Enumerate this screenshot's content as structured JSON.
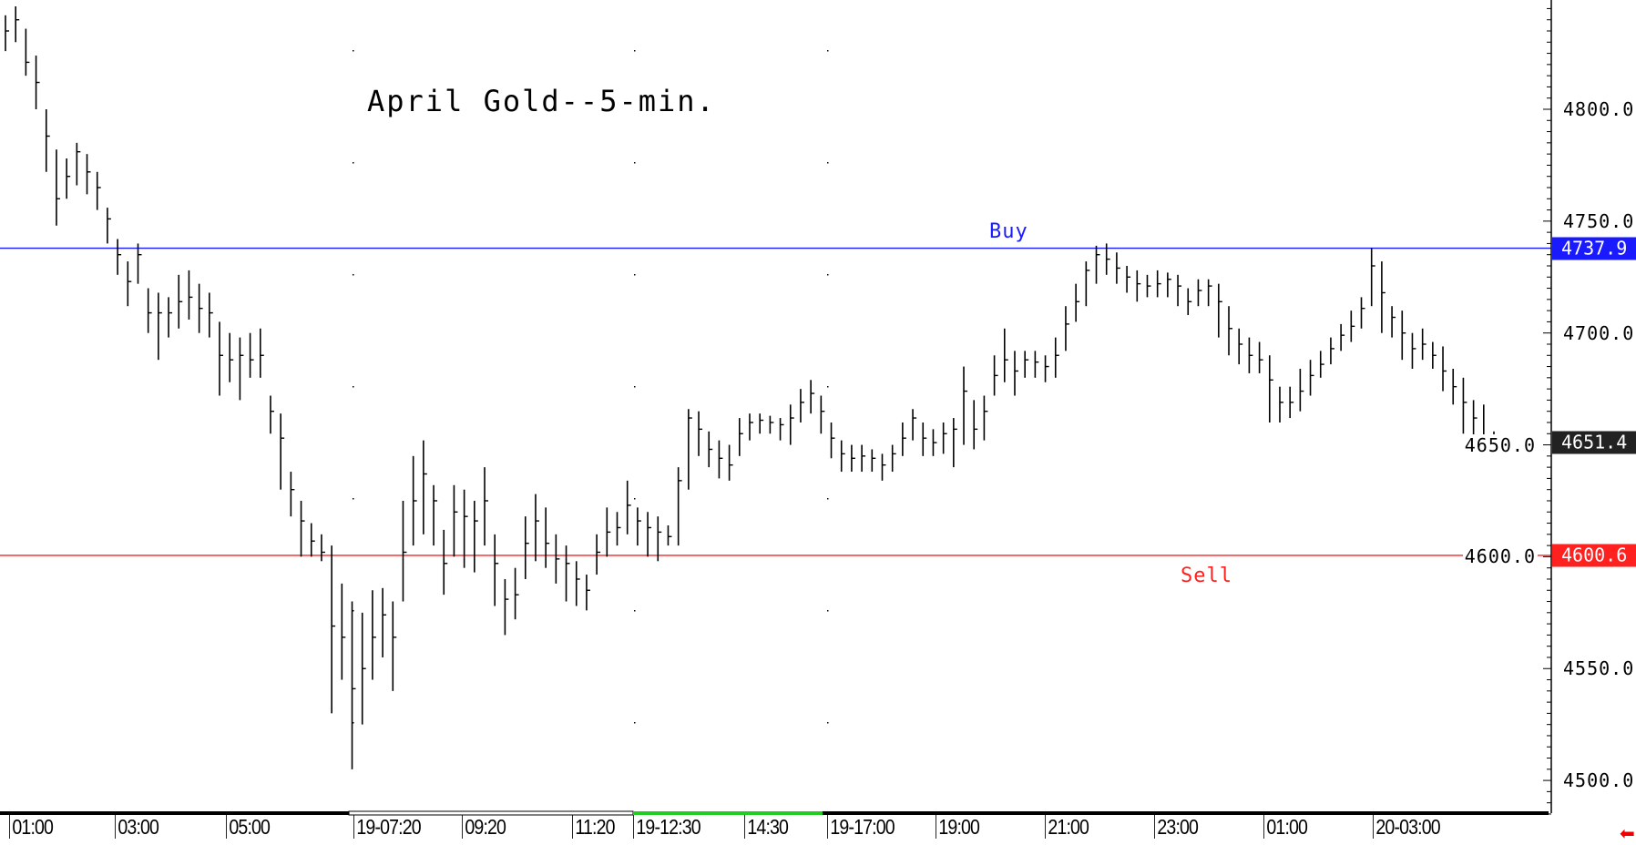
{
  "chart_data": {
    "type": "ohlc-bar",
    "title": "April Gold--5-min.",
    "ylim": [
      4480,
      4850
    ],
    "y_ticks": [
      "4800.0",
      "4750.0",
      "4700.0",
      "4650.0",
      "4600.0",
      "4550.0",
      "4500.0"
    ],
    "y_tick_values": [
      4800,
      4750,
      4700,
      4650,
      4600,
      4550,
      4500
    ],
    "x_ticks": [
      "01:00",
      "03:00",
      "05:00",
      "19-07:20",
      "09:20",
      "11:20",
      "19-12:30",
      "14:30",
      "19-17:00",
      "19:00",
      "21:00",
      "23:00",
      "01:00",
      "20-03:00"
    ],
    "grid": "dotted vertical at session breaks",
    "lines": [
      {
        "name": "Buy",
        "value": 4737.9,
        "label": "4737.9",
        "color": "#1a1aff"
      },
      {
        "name": "Sell",
        "value": 4600.6,
        "label": "4600.6",
        "color": "#ff2020"
      }
    ],
    "last_price": {
      "value": 4651.4,
      "label": "4651.4",
      "color": "#222222"
    },
    "bars": [
      [
        4842,
        4826,
        4835
      ],
      [
        4846,
        4830,
        4840
      ],
      [
        4836,
        4815,
        4821
      ],
      [
        4824,
        4800,
        4812
      ],
      [
        4800,
        4772,
        4788
      ],
      [
        4782,
        4748,
        4760
      ],
      [
        4778,
        4760,
        4770
      ],
      [
        4785,
        4766,
        4781
      ],
      [
        4780,
        4762,
        4772
      ],
      [
        4772,
        4755,
        4765
      ],
      [
        4756,
        4740,
        4751
      ],
      [
        4742,
        4726,
        4735
      ],
      [
        4732,
        4712,
        4723
      ],
      [
        4740,
        4722,
        4735
      ],
      [
        4720,
        4700,
        4709
      ],
      [
        4718,
        4688,
        4709
      ],
      [
        4716,
        4698,
        4709
      ],
      [
        4726,
        4702,
        4714
      ],
      [
        4728,
        4706,
        4716
      ],
      [
        4722,
        4700,
        4711
      ],
      [
        4718,
        4698,
        4709
      ],
      [
        4705,
        4672,
        4690
      ],
      [
        4700,
        4678,
        4688
      ],
      [
        4698,
        4670,
        4690
      ],
      [
        4700,
        4680,
        4688
      ],
      [
        4702,
        4680,
        4690
      ],
      [
        4672,
        4655,
        4665
      ],
      [
        4664,
        4630,
        4653
      ],
      [
        4638,
        4618,
        4630
      ],
      [
        4625,
        4600,
        4616
      ],
      [
        4615,
        4600,
        4607
      ],
      [
        4610,
        4598,
        4602
      ],
      [
        4605,
        4530,
        4569
      ],
      [
        4588,
        4545,
        4564
      ],
      [
        4580,
        4505,
        4541
      ],
      [
        4575,
        4525,
        4550
      ],
      [
        4585,
        4545,
        4564
      ],
      [
        4586,
        4555,
        4574
      ],
      [
        4580,
        4540,
        4564
      ],
      [
        4625,
        4580,
        4602
      ],
      [
        4645,
        4605,
        4625
      ],
      [
        4652,
        4610,
        4637
      ],
      [
        4632,
        4605,
        4625
      ],
      [
        4612,
        4583,
        4597
      ],
      [
        4632,
        4600,
        4620
      ],
      [
        4630,
        4595,
        4618
      ],
      [
        4625,
        4593,
        4616
      ],
      [
        4640,
        4605,
        4625
      ],
      [
        4610,
        4578,
        4597
      ],
      [
        4590,
        4565,
        4581
      ],
      [
        4595,
        4572,
        4583
      ],
      [
        4618,
        4590,
        4606
      ],
      [
        4628,
        4598,
        4616
      ],
      [
        4622,
        4595,
        4606
      ],
      [
        4610,
        4588,
        4599
      ],
      [
        4605,
        4580,
        4597
      ],
      [
        4598,
        4578,
        4590
      ],
      [
        4592,
        4576,
        4585
      ],
      [
        4610,
        4592,
        4602
      ],
      [
        4622,
        4600,
        4611
      ],
      [
        4620,
        4605,
        4613
      ],
      [
        4634,
        4610,
        4623
      ],
      [
        4622,
        4605,
        4616
      ],
      [
        4620,
        4600,
        4613
      ],
      [
        4618,
        4598,
        4611
      ],
      [
        4614,
        4605,
        4609
      ],
      [
        4640,
        4605,
        4634
      ],
      [
        4666,
        4630,
        4662
      ],
      [
        4665,
        4645,
        4657
      ],
      [
        4656,
        4640,
        4648
      ],
      [
        4652,
        4635,
        4644
      ],
      [
        4650,
        4634,
        4641
      ],
      [
        4662,
        4645,
        4655
      ],
      [
        4664,
        4652,
        4660
      ],
      [
        4664,
        4655,
        4661
      ],
      [
        4663,
        4655,
        4660
      ],
      [
        4662,
        4652,
        4659
      ],
      [
        4668,
        4650,
        4662
      ],
      [
        4675,
        4660,
        4669
      ],
      [
        4679,
        4664,
        4673
      ],
      [
        4672,
        4655,
        4665
      ],
      [
        4660,
        4644,
        4653
      ],
      [
        4652,
        4638,
        4646
      ],
      [
        4650,
        4638,
        4644
      ],
      [
        4650,
        4638,
        4645
      ],
      [
        4648,
        4638,
        4644
      ],
      [
        4646,
        4634,
        4641
      ],
      [
        4650,
        4638,
        4646
      ],
      [
        4660,
        4645,
        4653
      ],
      [
        4666,
        4652,
        4662
      ],
      [
        4660,
        4645,
        4653
      ],
      [
        4657,
        4645,
        4651
      ],
      [
        4660,
        4646,
        4655
      ],
      [
        4662,
        4640,
        4657
      ],
      [
        4685,
        4650,
        4674
      ],
      [
        4670,
        4648,
        4657
      ],
      [
        4672,
        4652,
        4665
      ],
      [
        4690,
        4672,
        4681
      ],
      [
        4702,
        4678,
        4688
      ],
      [
        4692,
        4672,
        4683
      ],
      [
        4692,
        4680,
        4688
      ],
      [
        4692,
        4680,
        4687
      ],
      [
        4690,
        4678,
        4685
      ],
      [
        4698,
        4680,
        4690
      ],
      [
        4712,
        4692,
        4704
      ],
      [
        4722,
        4705,
        4714
      ],
      [
        4732,
        4712,
        4728
      ],
      [
        4739,
        4722,
        4735
      ],
      [
        4740,
        4726,
        4733
      ],
      [
        4736,
        4722,
        4729
      ],
      [
        4730,
        4718,
        4725
      ],
      [
        4728,
        4714,
        4722
      ],
      [
        4726,
        4716,
        4721
      ],
      [
        4728,
        4716,
        4722
      ],
      [
        4727,
        4716,
        4724
      ],
      [
        4726,
        4712,
        4721
      ],
      [
        4720,
        4708,
        4714
      ],
      [
        4724,
        4712,
        4719
      ],
      [
        4724,
        4712,
        4721
      ],
      [
        4722,
        4698,
        4714
      ],
      [
        4712,
        4690,
        4702
      ],
      [
        4702,
        4686,
        4695
      ],
      [
        4698,
        4682,
        4690
      ],
      [
        4696,
        4682,
        4688
      ],
      [
        4690,
        4660,
        4679
      ],
      [
        4676,
        4660,
        4669
      ],
      [
        4676,
        4662,
        4669
      ],
      [
        4684,
        4665,
        4674
      ],
      [
        4688,
        4672,
        4681
      ],
      [
        4692,
        4680,
        4686
      ],
      [
        4698,
        4686,
        4693
      ],
      [
        4704,
        4692,
        4699
      ],
      [
        4710,
        4696,
        4703
      ],
      [
        4716,
        4702,
        4711
      ],
      [
        4738,
        4712,
        4730
      ],
      [
        4732,
        4700,
        4718
      ],
      [
        4712,
        4698,
        4707
      ],
      [
        4710,
        4688,
        4700
      ],
      [
        4700,
        4684,
        4693
      ],
      [
        4702,
        4688,
        4695
      ],
      [
        4696,
        4684,
        4690
      ],
      [
        4694,
        4674,
        4683
      ],
      [
        4684,
        4668,
        4676
      ],
      [
        4680,
        4655,
        4669
      ],
      [
        4670,
        4652,
        4662
      ],
      [
        4668,
        4652,
        4653
      ],
      [
        4656,
        4650,
        4651
      ]
    ]
  }
}
